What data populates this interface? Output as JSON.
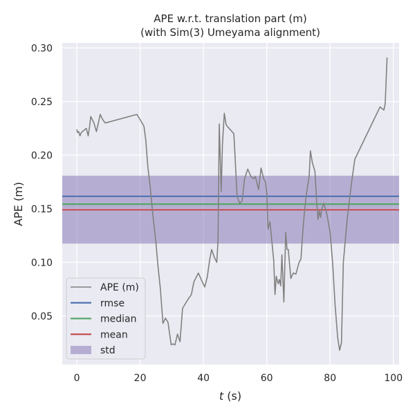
{
  "chart_data": {
    "type": "line",
    "title": [
      "APE w.r.t. translation part (m)",
      "(with Sim(3) Umeyama alignment)"
    ],
    "xlabel_italic": "t",
    "xlabel_rest": " (s)",
    "ylabel": "APE (m)",
    "xlim": [
      -4.6,
      101.8
    ],
    "ylim": [
      0.0047,
      0.3047
    ],
    "xticks": [
      0,
      20,
      40,
      60,
      80,
      100
    ],
    "yticks": [
      0.05,
      0.1,
      0.15,
      0.2,
      0.25,
      0.3
    ],
    "ytick_labels": [
      "0.05",
      "0.10",
      "0.15",
      "0.20",
      "0.25",
      "0.30"
    ],
    "grid": true,
    "legend_position": "lower-left",
    "stats": {
      "rmse": 0.1616,
      "median": 0.1543,
      "mean": 0.149,
      "std_low": 0.1175,
      "std_high": 0.1808
    },
    "series": [
      {
        "name": "APE (m)",
        "color": "#808080",
        "x": [
          0.0,
          0.2,
          0.6,
          1.0,
          1.4,
          2.2,
          3.0,
          3.6,
          4.0,
          4.4,
          5.4,
          6.2,
          6.8,
          7.4,
          8.2,
          9.0,
          19.0,
          21.2,
          21.8,
          22.4,
          23.2,
          24.0,
          25.0,
          25.6,
          26.4,
          27.2,
          28.0,
          28.8,
          29.8,
          30.4,
          31.0,
          31.8,
          32.6,
          33.4,
          35.0,
          36.2,
          37.0,
          38.4,
          39.6,
          40.4,
          41.2,
          42.0,
          42.6,
          43.4,
          44.2,
          44.6,
          45.0,
          45.6,
          46.0,
          46.6,
          47.2,
          49.6,
          50.0,
          50.6,
          51.4,
          52.2,
          53.0,
          54.0,
          55.0,
          55.8,
          56.4,
          57.4,
          58.2,
          59.0,
          59.6,
          60.0,
          60.4,
          61.0,
          61.6,
          62.2,
          62.6,
          63.0,
          63.6,
          64.0,
          64.4,
          64.8,
          65.4,
          66.0,
          66.4,
          66.8,
          67.6,
          68.4,
          69.2,
          70.2,
          70.8,
          71.4,
          72.0,
          72.6,
          73.4,
          73.8,
          74.4,
          75.2,
          75.8,
          76.2,
          76.6,
          77.0,
          77.4,
          78.0,
          79.0,
          80.0,
          80.8,
          81.6,
          82.4,
          83.0,
          83.6,
          84.2,
          85.4,
          86.6,
          87.8,
          95.8,
          96.2,
          97.0,
          97.4,
          97.6,
          98.0
        ],
        "y": [
          0.224,
          0.221,
          0.222,
          0.218,
          0.221,
          0.223,
          0.225,
          0.218,
          0.226,
          0.236,
          0.23,
          0.222,
          0.23,
          0.238,
          0.233,
          0.23,
          0.238,
          0.227,
          0.214,
          0.19,
          0.17,
          0.145,
          0.118,
          0.098,
          0.075,
          0.043,
          0.048,
          0.044,
          0.023,
          0.024,
          0.023,
          0.033,
          0.026,
          0.057,
          0.065,
          0.07,
          0.082,
          0.09,
          0.082,
          0.077,
          0.086,
          0.103,
          0.112,
          0.105,
          0.1,
          0.12,
          0.229,
          0.166,
          0.21,
          0.239,
          0.228,
          0.22,
          0.198,
          0.162,
          0.155,
          0.157,
          0.178,
          0.187,
          0.18,
          0.178,
          0.18,
          0.168,
          0.188,
          0.178,
          0.175,
          0.165,
          0.131,
          0.138,
          0.12,
          0.102,
          0.07,
          0.087,
          0.08,
          0.084,
          0.078,
          0.107,
          0.063,
          0.128,
          0.112,
          0.112,
          0.085,
          0.09,
          0.089,
          0.1,
          0.103,
          0.13,
          0.15,
          0.165,
          0.18,
          0.204,
          0.193,
          0.185,
          0.155,
          0.14,
          0.148,
          0.142,
          0.15,
          0.155,
          0.145,
          0.128,
          0.1,
          0.06,
          0.03,
          0.018,
          0.025,
          0.1,
          0.14,
          0.17,
          0.196,
          0.245,
          0.244,
          0.242,
          0.248,
          0.262,
          0.291
        ]
      },
      {
        "name": "rmse",
        "color": "#4c72b0"
      },
      {
        "name": "median",
        "color": "#55a868"
      },
      {
        "name": "mean",
        "color": "#c44e52"
      },
      {
        "name": "std",
        "color": "#8172b2"
      }
    ]
  }
}
